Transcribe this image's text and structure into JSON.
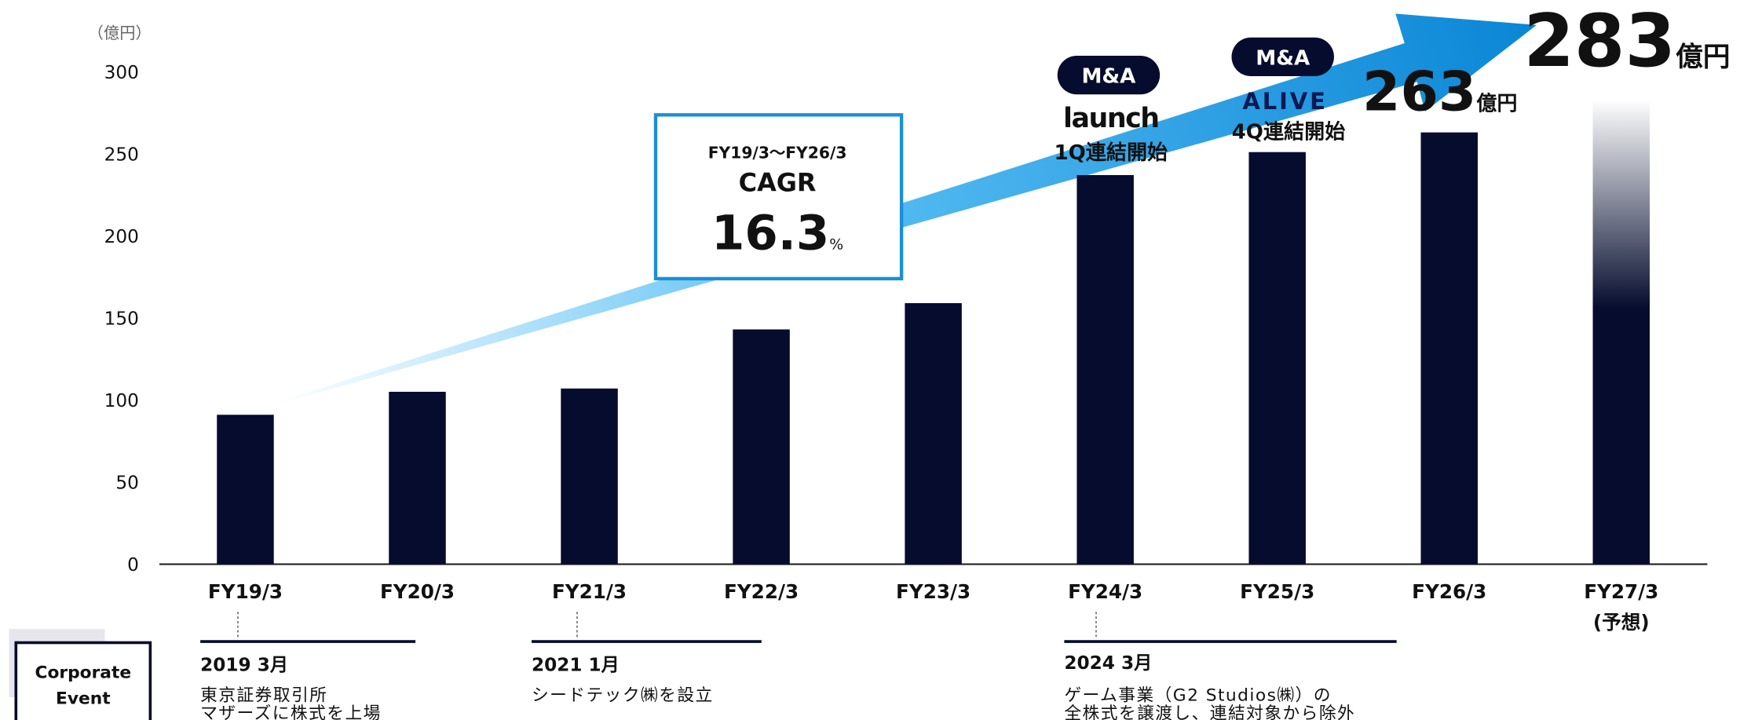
{
  "chart_data": {
    "type": "bar",
    "y_unit": "（億円）",
    "categories": [
      "FY19/3",
      "FY20/3",
      "FY21/3",
      "FY22/3",
      "FY23/3",
      "FY24/3",
      "FY25/3",
      "FY26/3",
      "FY27/3"
    ],
    "forecast_note": "(予想)",
    "values": [
      91,
      105,
      107,
      143,
      159,
      237,
      251,
      263,
      283
    ],
    "value_unit": "億円",
    "color": "#050c2e",
    "ylim": [
      0,
      300
    ],
    "yticks": [
      0,
      50,
      100,
      150,
      200,
      250,
      300
    ],
    "grid": false,
    "cagr": {
      "period": "FY19/3～FY26/3",
      "label": "CAGR",
      "value": "16.3",
      "unit": "%"
    },
    "annotations": [
      {
        "badge": "M&A",
        "logo": "launch",
        "text": "1Q連結開始"
      },
      {
        "badge": "M&A",
        "logo": "ALIVE",
        "text": "4Q連結開始"
      }
    ],
    "corporate_event": {
      "label": [
        "Corporate",
        "Event"
      ],
      "events": [
        {
          "date": "2019 3月",
          "lines": [
            "東京証券取引所",
            "マザーズに株式を上場"
          ]
        },
        {
          "date": "2021 1月",
          "lines": [
            "シードテック㈱を設立"
          ]
        },
        {
          "date": "2024 3月",
          "lines": [
            "ゲーム事業（G2 Studios㈱）の",
            "全株式を譲渡し、連結対象から除外"
          ]
        }
      ]
    }
  }
}
